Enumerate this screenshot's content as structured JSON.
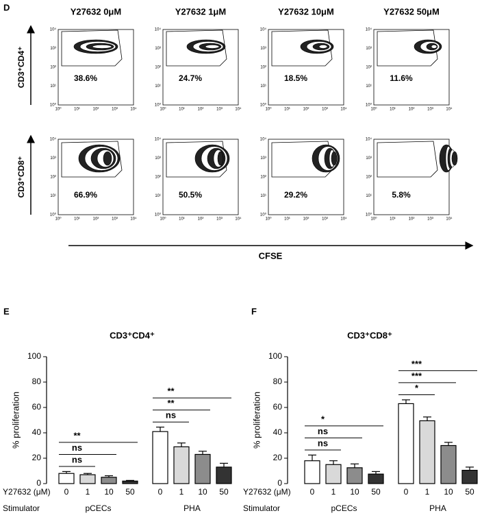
{
  "panel_d": {
    "label": "D",
    "columns": [
      "Y27632 0μM",
      "Y27632 1μM",
      "Y27632 10μM",
      "Y27632 50μM"
    ],
    "rows": [
      {
        "label": "CD3⁺CD4⁺",
        "percents": [
          "38.6%",
          "24.7%",
          "18.5%",
          "11.6%"
        ]
      },
      {
        "label": "CD3⁺CD8⁺",
        "percents": [
          "66.9%",
          "50.5%",
          "29.2%",
          "5.8%"
        ]
      }
    ],
    "flow_ticks": [
      "10⁰",
      "10¹",
      "10²",
      "10³",
      "10⁴"
    ],
    "x_axis_label": "CFSE"
  },
  "chart_data": [
    {
      "type": "bar",
      "panel": "E",
      "title": "CD3⁺CD4⁺",
      "y_label": "% proliferation",
      "categories": [
        "0",
        "1",
        "10",
        "50",
        "0",
        "1",
        "10",
        "50"
      ],
      "groups": [
        "pCECs",
        "PHA"
      ],
      "x_row_labels": [
        "Y27632 (μM)",
        "Stimulator"
      ],
      "values": [
        8,
        7,
        5,
        2,
        41,
        29,
        23,
        13
      ],
      "errors": [
        1.5,
        1,
        1.2,
        0.5,
        3.5,
        3,
        2.5,
        3
      ],
      "colors": [
        "#ffffff",
        "#d9d9d9",
        "#8c8c8c",
        "#333333",
        "#ffffff",
        "#d9d9d9",
        "#8c8c8c",
        "#333333"
      ],
      "ylim": [
        0,
        100
      ],
      "yticks": [
        0,
        20,
        40,
        60,
        80,
        100
      ],
      "comparisons": [
        {
          "label": "ns",
          "from": 0,
          "to": 1
        },
        {
          "label": "ns",
          "from": 0,
          "to": 2
        },
        {
          "label": "**",
          "from": 0,
          "to": 3
        },
        {
          "label": "ns",
          "from": 4,
          "to": 5
        },
        {
          "label": "**",
          "from": 4,
          "to": 6
        },
        {
          "label": "**",
          "from": 4,
          "to": 7
        }
      ]
    },
    {
      "type": "bar",
      "panel": "F",
      "title": "CD3⁺CD8⁺",
      "y_label": "% proliferation",
      "categories": [
        "0",
        "1",
        "10",
        "50",
        "0",
        "1",
        "10",
        "50"
      ],
      "groups": [
        "pCECs",
        "PHA"
      ],
      "x_row_labels": [
        "Y27632 (μM)",
        "Stimulator"
      ],
      "values": [
        18,
        15,
        12.5,
        7.5,
        63,
        49.5,
        30,
        10.5
      ],
      "errors": [
        4.5,
        3,
        3,
        2,
        3,
        3,
        2.5,
        2.5
      ],
      "colors": [
        "#ffffff",
        "#d9d9d9",
        "#8c8c8c",
        "#333333",
        "#ffffff",
        "#d9d9d9",
        "#8c8c8c",
        "#333333"
      ],
      "ylim": [
        0,
        100
      ],
      "yticks": [
        0,
        20,
        40,
        60,
        80,
        100
      ],
      "comparisons": [
        {
          "label": "ns",
          "from": 0,
          "to": 1
        },
        {
          "label": "ns",
          "from": 0,
          "to": 2
        },
        {
          "label": "*",
          "from": 0,
          "to": 3
        },
        {
          "label": "*",
          "from": 4,
          "to": 5
        },
        {
          "label": "***",
          "from": 4,
          "to": 6
        },
        {
          "label": "***",
          "from": 4,
          "to": 7
        }
      ]
    }
  ]
}
